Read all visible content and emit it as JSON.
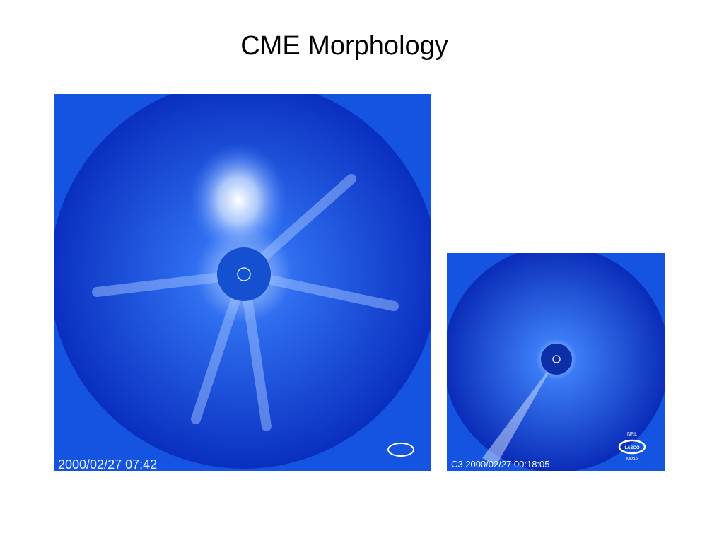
{
  "title": "CME Morphology",
  "images": [
    {
      "timestamp": "2000/02/27 07:42"
    },
    {
      "timestamp": "C3 2000/02/27 00:18:05",
      "logo": {
        "top": "NRL",
        "center": "LASCO",
        "bottom": "MPAe"
      }
    }
  ]
}
